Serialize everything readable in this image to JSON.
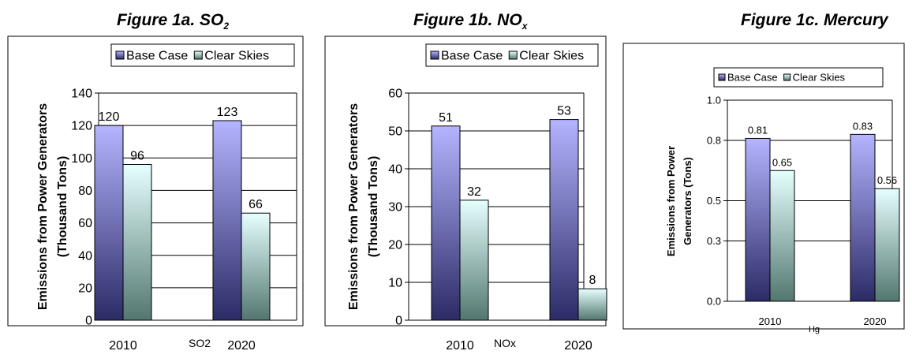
{
  "chart_data": [
    {
      "type": "bar",
      "title": "Figure 1a. SO",
      "title_sub": "2",
      "ylabel": "Emissions from Power Generators (Thousand Tons)",
      "ylabel_lines": [
        "Emissions from Power Generators",
        "(Thousand Tons)"
      ],
      "xlabel": "SO2",
      "categories": [
        "2010",
        "2020"
      ],
      "series": [
        {
          "name": "Base Case",
          "values": [
            120,
            123
          ]
        },
        {
          "name": "Clear Skies",
          "values": [
            96,
            66
          ]
        }
      ],
      "data_labels": [
        [
          "120",
          "123"
        ],
        [
          "96",
          "66"
        ]
      ],
      "ylim": [
        0,
        140
      ],
      "yticks": [
        "0",
        "20",
        "40",
        "60",
        "80",
        "100",
        "120",
        "140"
      ],
      "grid": true,
      "legend_position": "top"
    },
    {
      "type": "bar",
      "title": "Figure 1b. NO",
      "title_sub": "x",
      "ylabel": "Emissions from Power Generators (Thousand Tons)",
      "ylabel_lines": [
        "Emissions from Power Generators",
        "(Thousand Tons)"
      ],
      "xlabel": "NOx",
      "categories": [
        "2010",
        "2020"
      ],
      "series": [
        {
          "name": "Base Case",
          "values": [
            51.3,
            53
          ]
        },
        {
          "name": "Clear Skies",
          "values": [
            31.7,
            8.3
          ]
        }
      ],
      "data_labels": [
        [
          "51",
          "53"
        ],
        [
          "32",
          "8"
        ]
      ],
      "ylim": [
        0,
        60
      ],
      "yticks": [
        "0",
        "10",
        "20",
        "30",
        "40",
        "50",
        "60"
      ],
      "grid": true,
      "legend_position": "top"
    },
    {
      "type": "bar",
      "title": "Figure 1c.  Mercury",
      "title_sub": "",
      "ylabel": "Emissions from Power Generators (Tons)",
      "ylabel_lines": [
        "Emissions from Power",
        "Generators (Tons)"
      ],
      "xlabel": "Hg",
      "categories": [
        "2010",
        "2020"
      ],
      "series": [
        {
          "name": "Base Case",
          "values": [
            0.81,
            0.83
          ]
        },
        {
          "name": "Clear Skies",
          "values": [
            0.65,
            0.56
          ]
        }
      ],
      "data_labels": [
        [
          "0.81",
          "0.83"
        ],
        [
          "0.65",
          "0.56"
        ]
      ],
      "ylim": [
        0,
        1.0
      ],
      "yticks": [
        "0.0",
        "0.3",
        "0.5",
        "0.8",
        "1.0"
      ],
      "grid": true,
      "legend_position": "top"
    }
  ]
}
